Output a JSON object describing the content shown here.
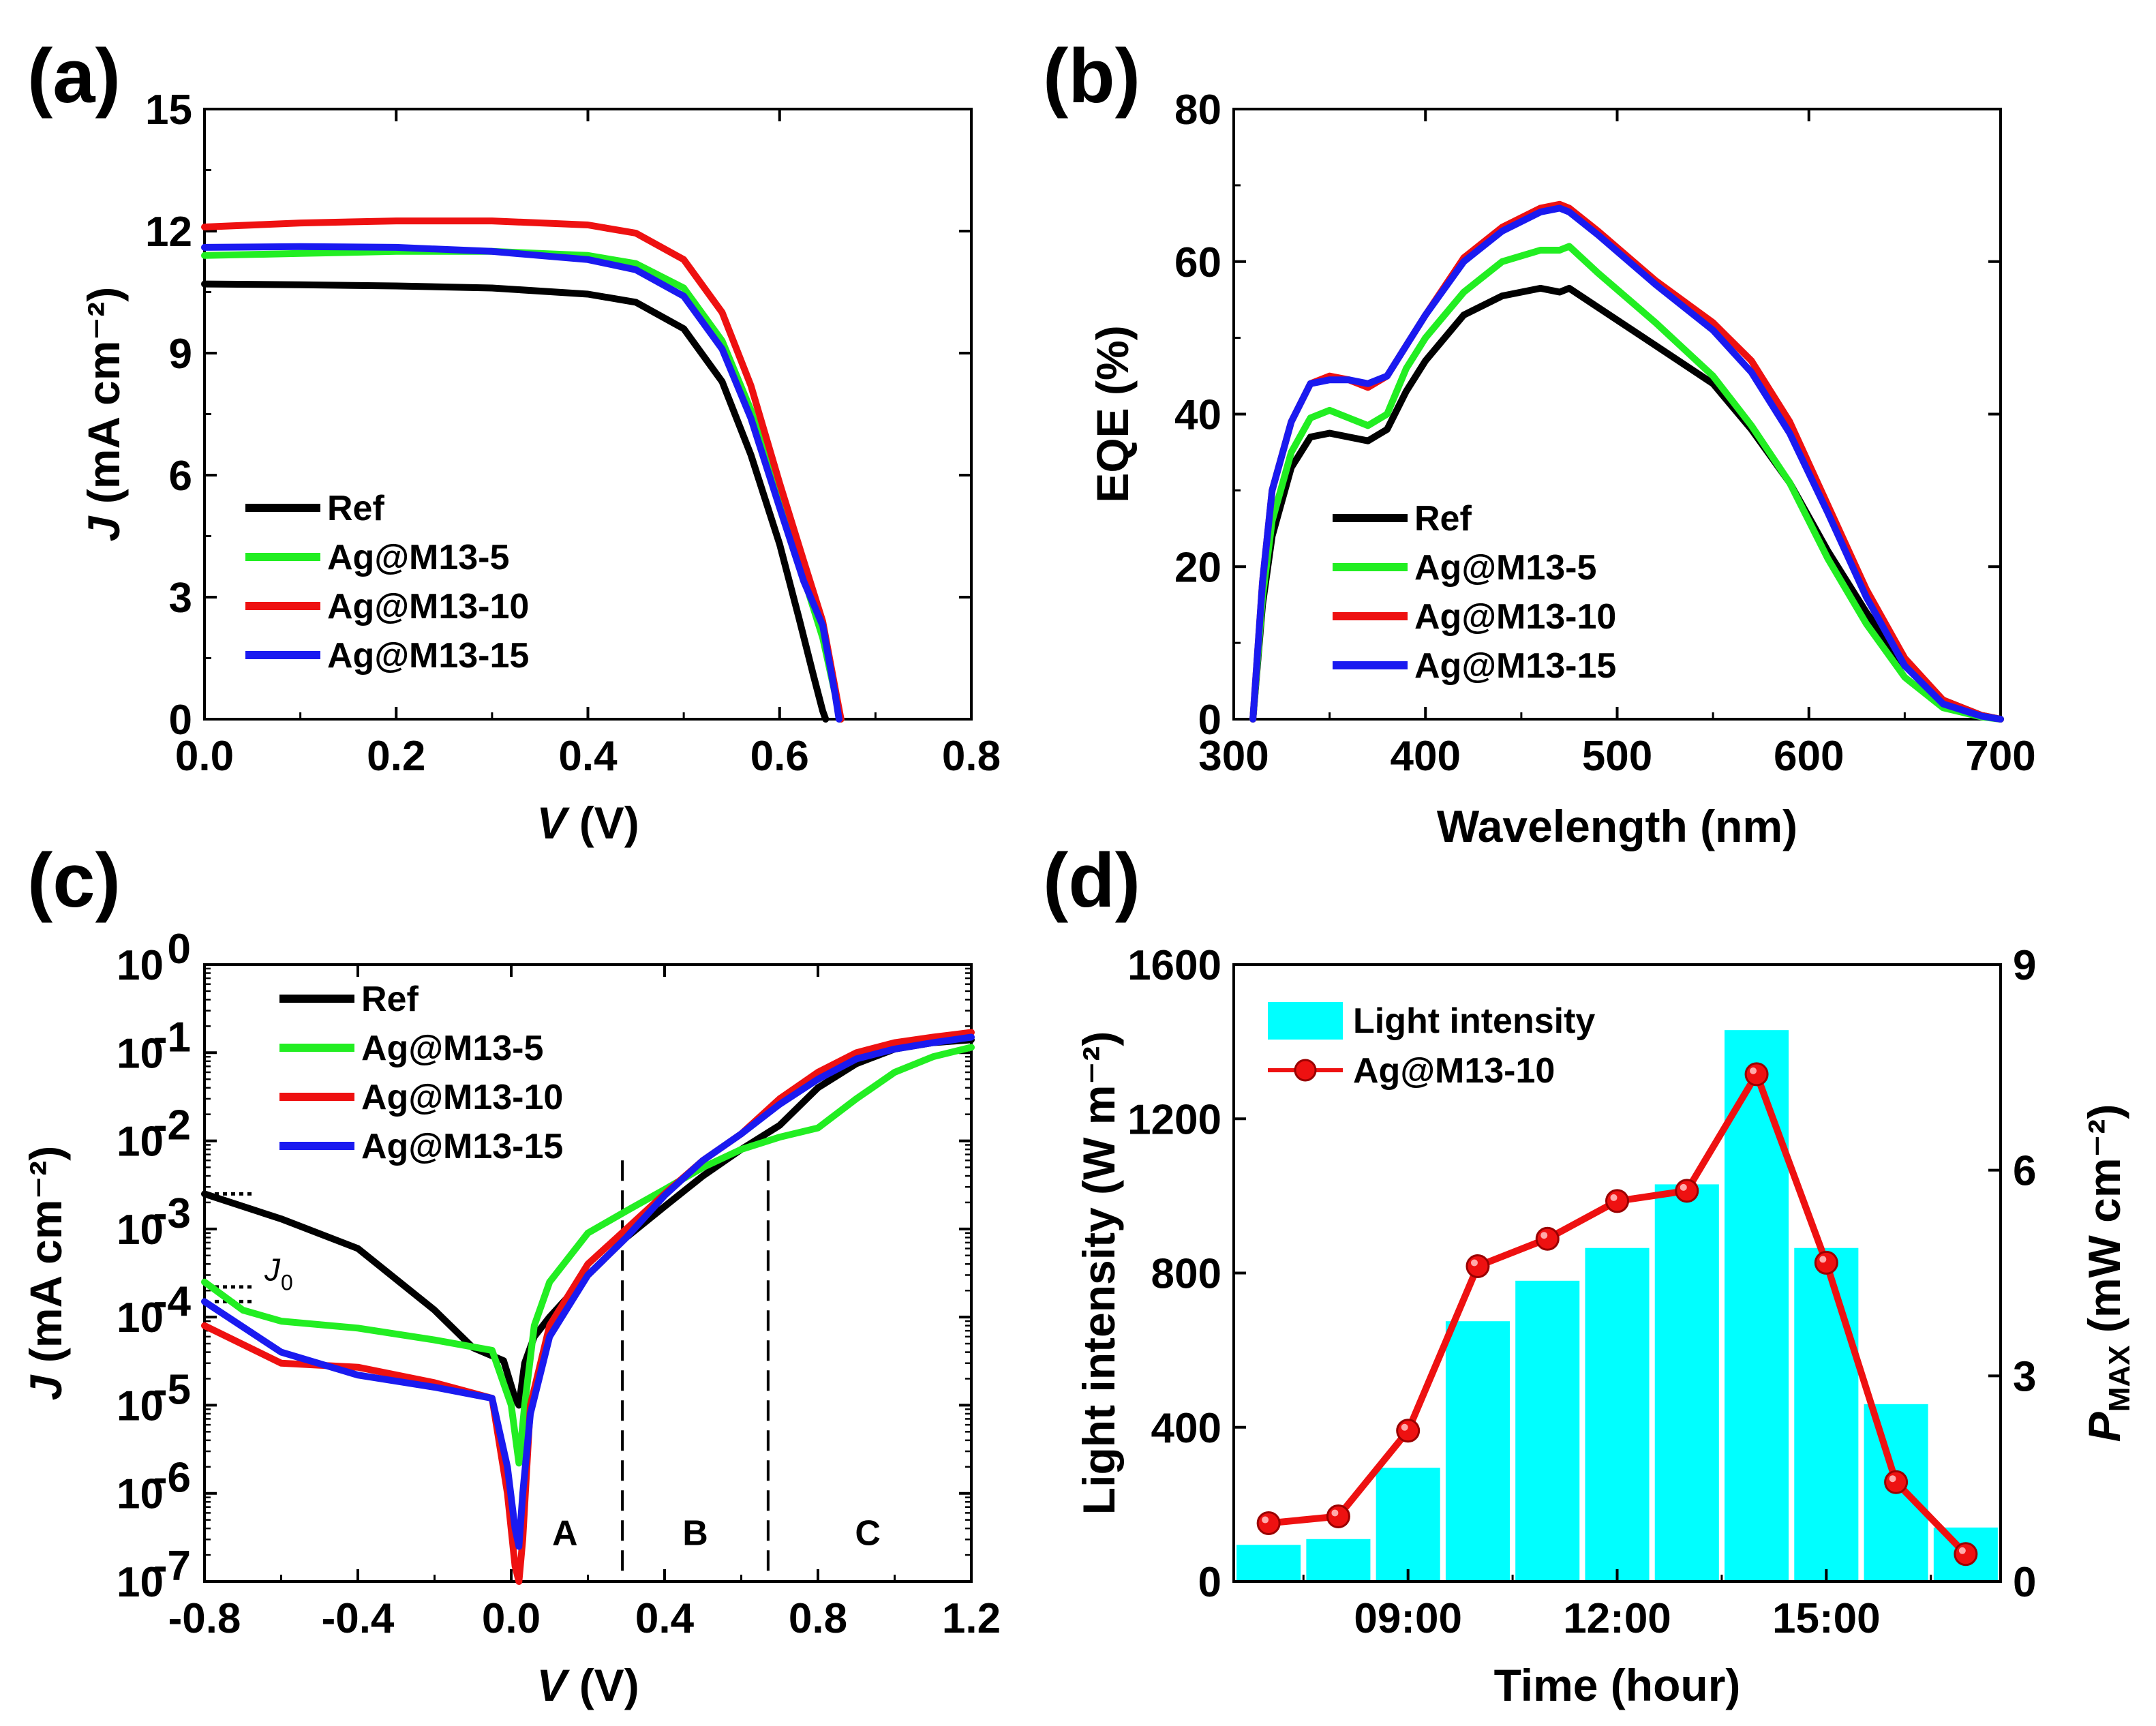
{
  "panels": [
    {
      "letter": "(a)"
    },
    {
      "letter": "(b)"
    },
    {
      "letter": "(c)"
    },
    {
      "letter": "(d)"
    }
  ],
  "chart_data": [
    {
      "id": "a",
      "type": "line",
      "xlabel_italic": "V",
      "xlabel": "(V)",
      "ylabel_italic": "J",
      "ylabel": "(mA cm⁻²)",
      "xlim": [
        0,
        0.8
      ],
      "ylim": [
        0,
        15
      ],
      "xticks": [
        0,
        0.2,
        0.4,
        0.6,
        0.8
      ],
      "xtick_labels": [
        "0.0",
        "0.2",
        "0.4",
        "0.6",
        "0.8"
      ],
      "yticks": [
        0,
        3,
        6,
        9,
        12,
        15
      ],
      "ytick_labels": [
        "0",
        "3",
        "6",
        "9",
        "12",
        "15"
      ],
      "legend_position": "bottom-left",
      "series": [
        {
          "name": "Ref",
          "color": "#000000",
          "x": [
            0,
            0.1,
            0.2,
            0.3,
            0.4,
            0.45,
            0.5,
            0.54,
            0.57,
            0.6,
            0.62,
            0.635,
            0.645,
            0.648
          ],
          "y": [
            10.7,
            10.68,
            10.65,
            10.6,
            10.45,
            10.25,
            9.6,
            8.3,
            6.5,
            4.3,
            2.5,
            1.1,
            0.2,
            0
          ]
        },
        {
          "name": "Ag@M13-5",
          "color": "#22ee22",
          "x": [
            0,
            0.1,
            0.2,
            0.3,
            0.4,
            0.45,
            0.5,
            0.54,
            0.57,
            0.6,
            0.625,
            0.645,
            0.66,
            0.664
          ],
          "y": [
            11.4,
            11.45,
            11.5,
            11.5,
            11.4,
            11.2,
            10.6,
            9.3,
            7.6,
            5.3,
            3.5,
            2.0,
            0.4,
            0
          ]
        },
        {
          "name": "Ag@M13-10",
          "color": "#ee1111",
          "x": [
            0,
            0.1,
            0.2,
            0.3,
            0.4,
            0.45,
            0.5,
            0.54,
            0.57,
            0.6,
            0.625,
            0.645,
            0.66,
            0.664
          ],
          "y": [
            12.1,
            12.2,
            12.25,
            12.25,
            12.15,
            11.95,
            11.3,
            10.0,
            8.2,
            5.8,
            3.9,
            2.4,
            0.5,
            0
          ]
        },
        {
          "name": "Ag@M13-15",
          "color": "#1a1af0",
          "x": [
            0,
            0.1,
            0.2,
            0.3,
            0.4,
            0.45,
            0.5,
            0.54,
            0.57,
            0.6,
            0.625,
            0.645,
            0.658,
            0.662
          ],
          "y": [
            11.6,
            11.62,
            11.6,
            11.5,
            11.3,
            11.05,
            10.4,
            9.1,
            7.4,
            5.2,
            3.4,
            2.3,
            0.6,
            0
          ]
        }
      ]
    },
    {
      "id": "b",
      "type": "line",
      "xlabel": "Wavelength (nm)",
      "ylabel": "EQE (%)",
      "xlim": [
        300,
        700
      ],
      "ylim": [
        0,
        80
      ],
      "xticks": [
        300,
        400,
        500,
        600,
        700
      ],
      "xtick_labels": [
        "300",
        "400",
        "500",
        "600",
        "700"
      ],
      "yticks": [
        0,
        20,
        40,
        60,
        80
      ],
      "ytick_labels": [
        "0",
        "20",
        "40",
        "60",
        "80"
      ],
      "legend_position": "bottom-left",
      "series": [
        {
          "name": "Ref",
          "color": "#000000",
          "x": [
            310,
            315,
            320,
            330,
            340,
            350,
            360,
            370,
            380,
            390,
            400,
            420,
            440,
            460,
            470,
            475,
            490,
            520,
            550,
            570,
            590,
            610,
            630,
            650,
            670,
            690,
            700
          ],
          "y": [
            0,
            15,
            24,
            33,
            37,
            37.5,
            37,
            36.5,
            38,
            43,
            47,
            53,
            55.5,
            56.5,
            56,
            56.5,
            54,
            49,
            44,
            38,
            31,
            22,
            14,
            7,
            2.5,
            0.5,
            0
          ]
        },
        {
          "name": "Ag@M13-5",
          "color": "#22ee22",
          "x": [
            310,
            315,
            320,
            330,
            340,
            350,
            360,
            370,
            380,
            390,
            400,
            420,
            440,
            460,
            470,
            475,
            490,
            520,
            550,
            570,
            590,
            610,
            630,
            650,
            670,
            690,
            700
          ],
          "y": [
            0,
            16,
            26,
            35,
            39.5,
            40.5,
            39.5,
            38.5,
            40,
            46,
            50,
            56,
            60,
            61.5,
            61.5,
            62,
            58.5,
            52,
            45,
            38.5,
            31,
            21,
            12.5,
            5.5,
            1.5,
            0.3,
            0
          ]
        },
        {
          "name": "Ag@M13-10",
          "color": "#ee1111",
          "x": [
            310,
            315,
            320,
            330,
            340,
            350,
            360,
            370,
            380,
            390,
            400,
            420,
            440,
            460,
            470,
            475,
            490,
            520,
            550,
            570,
            590,
            610,
            630,
            650,
            670,
            690,
            700
          ],
          "y": [
            0,
            18,
            30,
            39,
            44,
            45,
            44.5,
            43.5,
            45,
            49,
            53,
            60.5,
            64.5,
            67,
            67.5,
            67,
            64,
            57.5,
            52,
            47,
            39,
            28,
            17,
            8,
            2.5,
            0.5,
            0
          ]
        },
        {
          "name": "Ag@M13-15",
          "color": "#1a1af0",
          "x": [
            310,
            315,
            320,
            330,
            340,
            350,
            360,
            370,
            380,
            390,
            400,
            420,
            440,
            460,
            470,
            475,
            490,
            520,
            550,
            570,
            590,
            610,
            630,
            650,
            670,
            690,
            700
          ],
          "y": [
            0,
            18,
            30,
            39,
            44,
            44.5,
            44.5,
            44,
            45,
            49,
            53,
            60,
            64,
            66.5,
            67,
            66.5,
            63.5,
            57,
            51,
            45.5,
            37.5,
            27,
            16,
            7,
            2,
            0.4,
            0
          ]
        }
      ]
    },
    {
      "id": "c",
      "type": "line",
      "yscale": "log",
      "xlabel_italic": "V",
      "xlabel": "(V)",
      "ylabel_italic": "J",
      "ylabel": "(mA cm⁻²)",
      "xlim": [
        -0.8,
        1.2
      ],
      "ylim": [
        1e-07,
        1
      ],
      "xticks": [
        -0.8,
        -0.4,
        0,
        0.4,
        0.8,
        1.2
      ],
      "xtick_labels": [
        "-0.8",
        "-0.4",
        "0.0",
        "0.4",
        "0.8",
        "1.2"
      ],
      "yticks": [
        1e-07,
        1e-06,
        1e-05,
        0.0001,
        0.001,
        0.01,
        0.1,
        1
      ],
      "ytick_exponents": [
        "-7",
        "-6",
        "-5",
        "-4",
        "-3",
        "-2",
        "-1",
        "0"
      ],
      "ytick_base": "10",
      "legend_position": "top-left",
      "annotations": {
        "j0_label": "J",
        "j0_sub": "0",
        "regions": [
          "A",
          "B",
          "C"
        ],
        "region_boundaries": [
          0.29,
          0.67
        ]
      },
      "series": [
        {
          "name": "Ref",
          "color": "#000000",
          "x": [
            -0.8,
            -0.6,
            -0.4,
            -0.2,
            -0.1,
            -0.02,
            0.01,
            0.02,
            0.035,
            0.06,
            0.1,
            0.2,
            0.3,
            0.4,
            0.5,
            0.6,
            0.7,
            0.8,
            0.9,
            1.0,
            1.1,
            1.2
          ],
          "y": [
            0.0025,
            0.0013,
            0.0006,
            0.00012,
            4.5e-05,
            3.2e-05,
            1.2e-05,
            1e-05,
            3e-05,
            6e-05,
            0.0001,
            0.0003,
            0.0008,
            0.0018,
            0.004,
            0.008,
            0.015,
            0.04,
            0.075,
            0.11,
            0.13,
            0.14
          ]
        },
        {
          "name": "Ag@M13-5",
          "color": "#22ee22",
          "x": [
            -0.8,
            -0.7,
            -0.6,
            -0.4,
            -0.2,
            -0.05,
            0.0,
            0.02,
            0.035,
            0.06,
            0.1,
            0.2,
            0.3,
            0.4,
            0.5,
            0.6,
            0.7,
            0.8,
            0.9,
            1.0,
            1.1,
            1.2
          ],
          "y": [
            0.00025,
            0.00012,
            9e-05,
            7.5e-05,
            5.5e-05,
            4.2e-05,
            1e-05,
            2.2e-06,
            1e-05,
            8e-05,
            0.00025,
            0.0009,
            0.0016,
            0.0028,
            0.005,
            0.008,
            0.011,
            0.014,
            0.03,
            0.06,
            0.09,
            0.115
          ]
        },
        {
          "name": "Ag@M13-10",
          "color": "#ee1111",
          "x": [
            -0.8,
            -0.6,
            -0.4,
            -0.2,
            -0.05,
            -0.01,
            0.01,
            0.02,
            0.03,
            0.05,
            0.1,
            0.2,
            0.3,
            0.4,
            0.5,
            0.6,
            0.7,
            0.8,
            0.9,
            1.0,
            1.1,
            1.2
          ],
          "y": [
            8e-05,
            3e-05,
            2.7e-05,
            1.8e-05,
            1.2e-05,
            1e-06,
            1.5e-07,
            1e-07,
            3e-07,
            1e-05,
            8e-05,
            0.0004,
            0.001,
            0.0025,
            0.006,
            0.012,
            0.03,
            0.06,
            0.1,
            0.13,
            0.15,
            0.17
          ]
        },
        {
          "name": "Ag@M13-15",
          "color": "#1a1af0",
          "x": [
            -0.8,
            -0.6,
            -0.4,
            -0.2,
            -0.05,
            -0.01,
            0.01,
            0.02,
            0.03,
            0.05,
            0.1,
            0.2,
            0.3,
            0.4,
            0.5,
            0.6,
            0.7,
            0.8,
            0.9,
            1.0,
            1.1,
            1.2
          ],
          "y": [
            0.00015,
            4e-05,
            2.2e-05,
            1.6e-05,
            1.2e-05,
            2e-06,
            4e-07,
            2.5e-07,
            1e-06,
            8e-06,
            6e-05,
            0.0003,
            0.0008,
            0.0024,
            0.006,
            0.012,
            0.026,
            0.05,
            0.085,
            0.11,
            0.13,
            0.15
          ]
        }
      ]
    },
    {
      "id": "d",
      "type": "bar+line",
      "xlabel": "Time (hour)",
      "ylabel": "Light intensity (W m⁻²)",
      "y2label_italic": "P",
      "y2label_sub": "MAX",
      "y2label": "(mW cm⁻²)",
      "xlim": [
        6.5,
        17.5
      ],
      "ylim": [
        0,
        1600
      ],
      "y2lim": [
        0,
        9
      ],
      "xticks": [
        9,
        12,
        15
      ],
      "xtick_labels": [
        "09:00",
        "12:00",
        "15:00"
      ],
      "yticks": [
        0,
        400,
        800,
        1200,
        1600
      ],
      "ytick_labels": [
        "0",
        "400",
        "800",
        "1200",
        "1600"
      ],
      "y2ticks": [
        0,
        3,
        6,
        9
      ],
      "y2tick_labels": [
        "0",
        "3",
        "6",
        "9"
      ],
      "legend_position": "top-left",
      "bar_series": {
        "name": "Light intensity",
        "color": "#00ffff",
        "x": [
          7,
          8,
          9,
          10,
          11,
          12,
          13,
          14,
          15,
          16,
          17
        ],
        "values": [
          95,
          110,
          295,
          675,
          780,
          865,
          1030,
          1430,
          865,
          460,
          140
        ]
      },
      "line_series": {
        "name": "Ag@M13-10",
        "color": "#ee1111",
        "x": [
          7,
          8,
          9,
          10,
          11,
          12,
          13,
          14,
          15,
          16,
          17
        ],
        "values": [
          0.85,
          0.95,
          2.2,
          4.6,
          5.0,
          5.55,
          5.7,
          7.4,
          4.65,
          1.45,
          0.4
        ]
      }
    }
  ]
}
